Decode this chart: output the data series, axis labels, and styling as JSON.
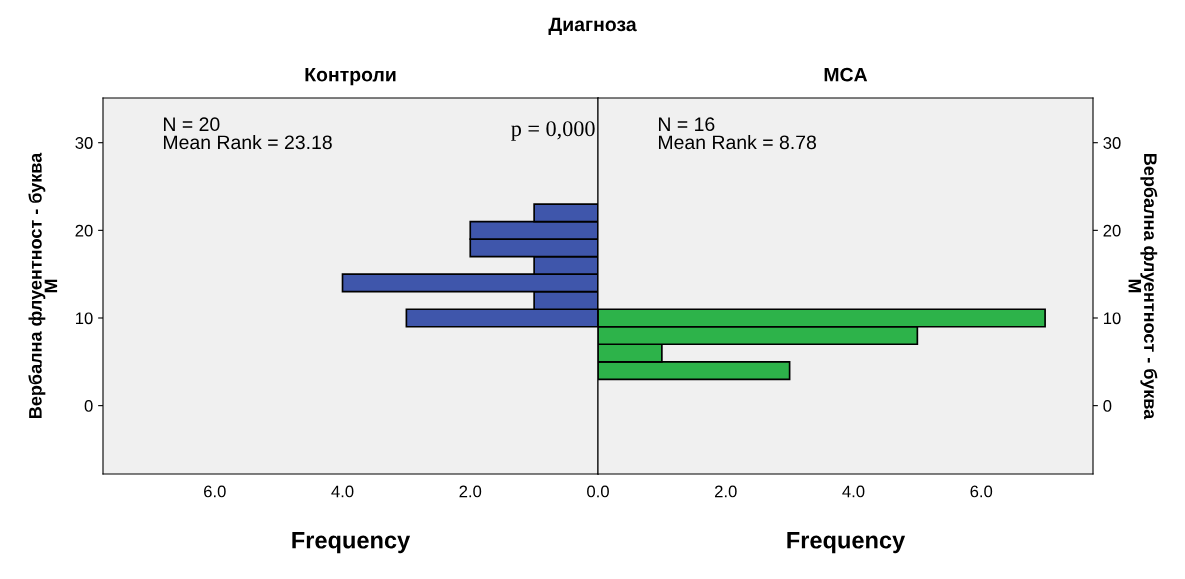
{
  "chart_data": [
    {
      "type": "histogram",
      "orientation": "horizontal",
      "title": "Контроли",
      "xlabel": "Frequency",
      "ylabel": "Вербална флуентност - буква\nM",
      "bins": [
        9,
        11,
        13,
        15,
        17,
        19,
        21,
        23
      ],
      "values": [
        3,
        1,
        4,
        1,
        2,
        2,
        1
      ],
      "color": "#3f56ab",
      "xlim": [
        7.75,
        0
      ],
      "xticks": [
        {
          "value": 6,
          "label": "6.0"
        },
        {
          "value": 4,
          "label": "4.0"
        },
        {
          "value": 2,
          "label": "2.0"
        },
        {
          "value": 0,
          "label": "0.0"
        }
      ],
      "ylim": [
        -7.8,
        35.1
      ],
      "yticks": [
        0,
        10,
        20,
        30
      ],
      "grid": false,
      "annotations": [
        "N = 20\nMean Rank = 23.18",
        "p = 0,000",
        "Диагноза"
      ]
    },
    {
      "type": "histogram",
      "orientation": "horizontal",
      "title": "MCA",
      "xlabel": "Frequency",
      "ylabel": "Вербална флуентност - буква\nM",
      "bins": [
        3,
        5,
        7,
        9,
        11
      ],
      "values": [
        3,
        1,
        5,
        7
      ],
      "color": "#2db34a",
      "xlim": [
        0,
        7.75
      ],
      "xticks": [
        {
          "value": 0,
          "label": null
        },
        {
          "value": 2,
          "label": "2.0"
        },
        {
          "value": 4,
          "label": "4.0"
        },
        {
          "value": 6,
          "label": "6.0"
        }
      ],
      "ylim": [
        -7.8,
        35.1
      ],
      "yticks": [
        0,
        10,
        20,
        30
      ],
      "grid": false,
      "annotations": [
        "N = 16\nMean Rank = 8.78"
      ]
    }
  ]
}
